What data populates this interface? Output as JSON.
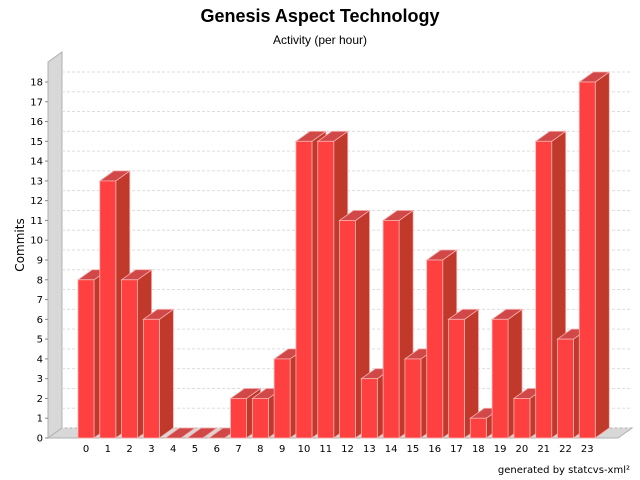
{
  "header": {
    "title": "Genesis Aspect Technology",
    "subtitle": "Activity (per hour)"
  },
  "footer": {
    "note": "generated by statcvs-xml²"
  },
  "chart_data": {
    "type": "bar",
    "title": "Genesis Aspect Technology",
    "subtitle": "Activity (per hour)",
    "xlabel": "",
    "ylabel": "Commits",
    "categories": [
      "0",
      "1",
      "2",
      "3",
      "4",
      "5",
      "6",
      "7",
      "8",
      "9",
      "10",
      "11",
      "12",
      "13",
      "14",
      "15",
      "16",
      "17",
      "18",
      "19",
      "20",
      "21",
      "22",
      "23"
    ],
    "values": [
      8,
      13,
      8,
      6,
      0,
      0,
      0,
      2,
      2,
      4,
      15,
      15,
      11,
      3,
      11,
      4,
      9,
      6,
      1,
      6,
      2,
      15,
      5,
      18
    ],
    "ylim": [
      0,
      18
    ],
    "yticks": [
      0,
      1,
      2,
      3,
      4,
      5,
      6,
      7,
      8,
      9,
      10,
      11,
      12,
      13,
      14,
      15,
      16,
      17,
      18
    ],
    "grid": true,
    "style": "3d",
    "colors": {
      "bar_front": "#ff4040",
      "bar_side": "#c0392b",
      "bar_top": "#d04848",
      "bar_edge": "#f8b0b0",
      "wall": "#d8d8d8",
      "wall_edge": "#b0b0b0",
      "grid": "#dddddd"
    }
  }
}
